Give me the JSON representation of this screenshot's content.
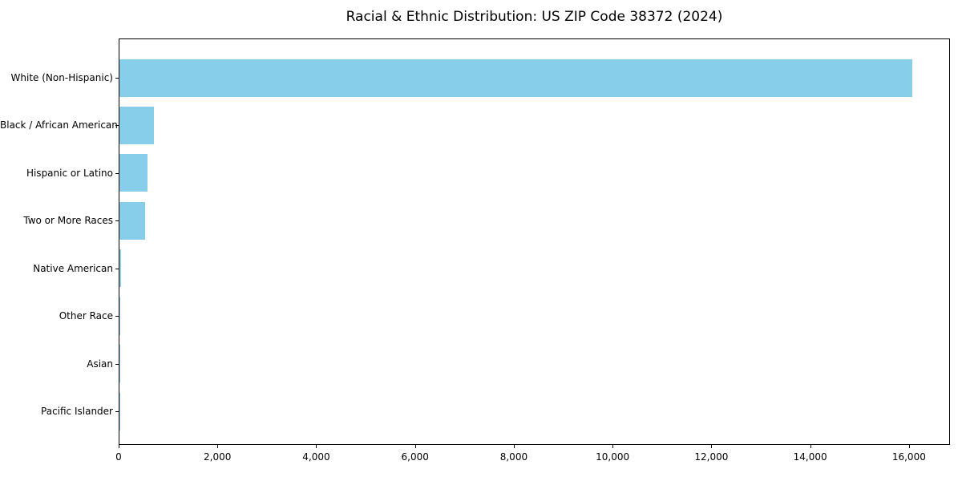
{
  "chart_data": {
    "type": "bar",
    "orientation": "horizontal",
    "title": "Racial & Ethnic Distribution: US ZIP Code 38372 (2024)",
    "categories": [
      "White (Non-Hispanic)",
      "Black / African American",
      "Hispanic or Latino",
      "Two or More Races",
      "Native American",
      "Other Race",
      "Asian",
      "Pacific Islander"
    ],
    "values": [
      16050,
      700,
      570,
      520,
      35,
      20,
      10,
      4
    ],
    "xlabel": "",
    "ylabel": "",
    "xlim": [
      0,
      16830
    ],
    "xticks": [
      0,
      2000,
      4000,
      6000,
      8000,
      10000,
      12000,
      14000,
      16000
    ],
    "xtick_labels": [
      "0",
      "2,000",
      "4,000",
      "6,000",
      "8,000",
      "10,000",
      "12,000",
      "14,000",
      "16,000"
    ],
    "bar_color": "#87CEEB",
    "axis_color": "#000000",
    "text_color": "#000000",
    "background": "#FFFFFF",
    "grid": false,
    "legend": false
  }
}
